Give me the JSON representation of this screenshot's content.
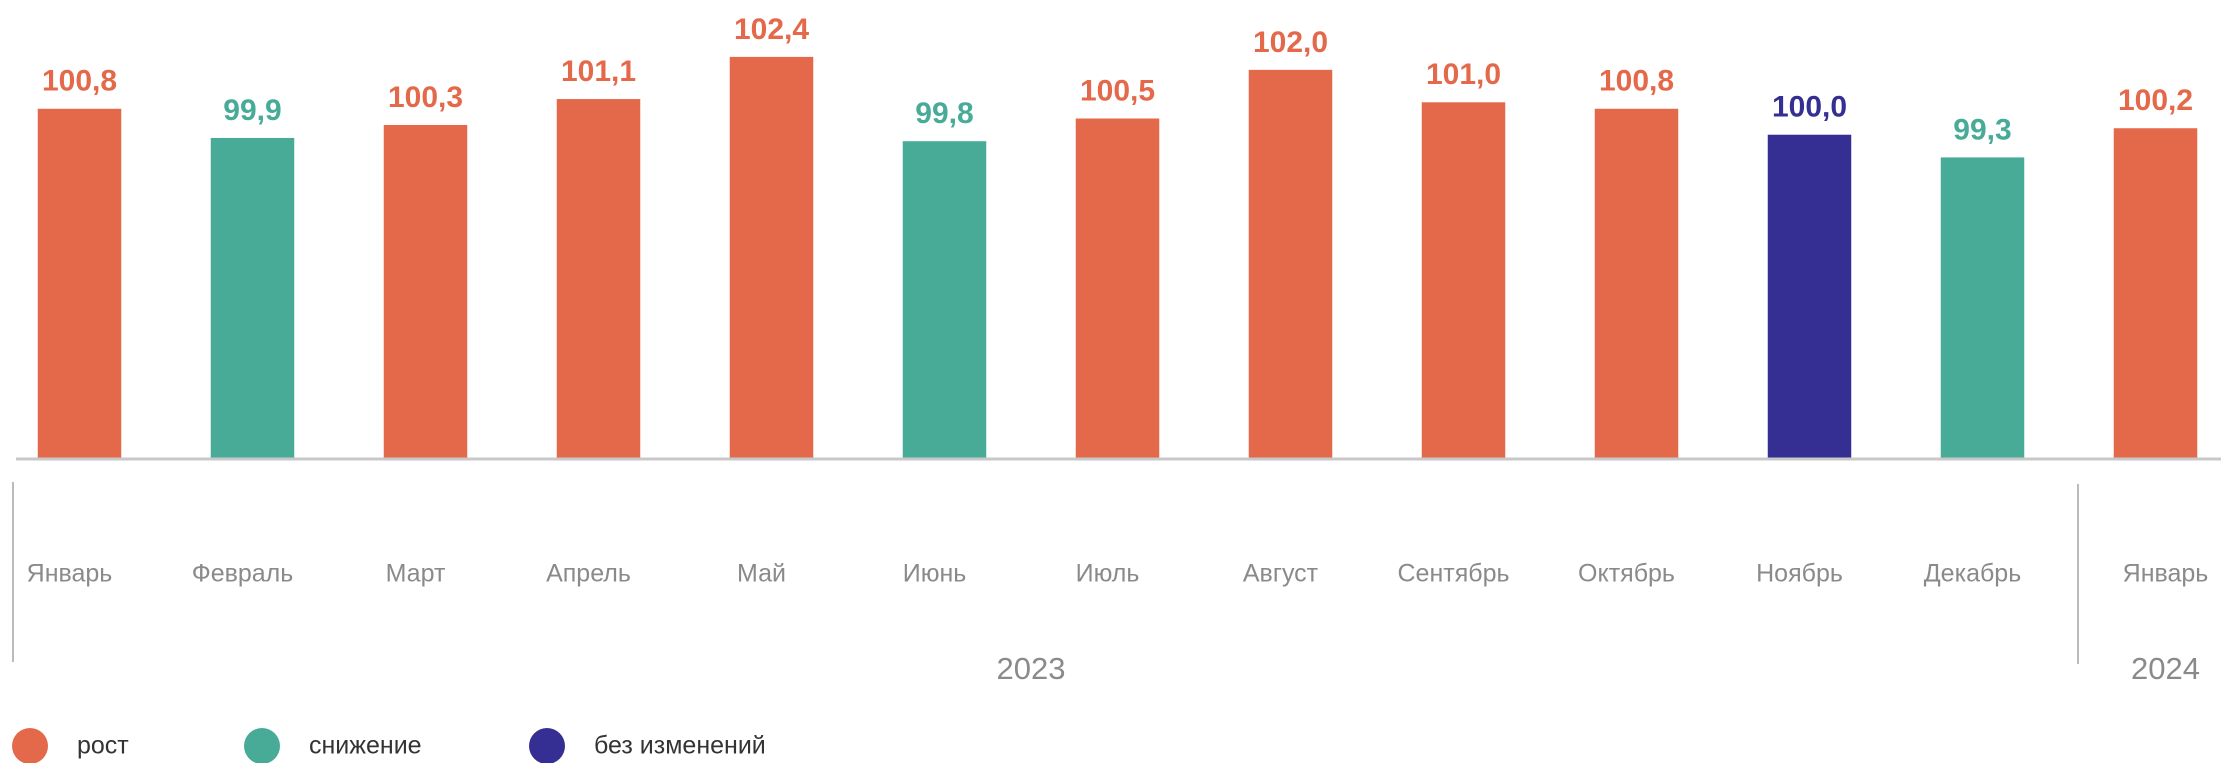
{
  "chart_data": {
    "type": "bar",
    "categories": [
      "Январь",
      "Февраль",
      "Март",
      "Апрель",
      "Май",
      "Июнь",
      "Июль",
      "Август",
      "Сентябрь",
      "Октябрь",
      "Ноябрь",
      "Декабрь",
      "Январь"
    ],
    "years": [
      "2023",
      "2023",
      "2023",
      "2023",
      "2023",
      "2023",
      "2023",
      "2023",
      "2023",
      "2023",
      "2023",
      "2023",
      "2024"
    ],
    "values": [
      100.8,
      99.9,
      100.3,
      101.1,
      102.4,
      99.8,
      100.5,
      102.0,
      101.0,
      100.8,
      100.0,
      99.3,
      100.2
    ],
    "value_labels": [
      "100,8",
      "99,9",
      "100,3",
      "101,1",
      "102,4",
      "99,8",
      "100,5",
      "102,0",
      "101,0",
      "100,8",
      "100,0",
      "99,3",
      "100,2"
    ],
    "colors": [
      "#e4694a",
      "#47ab98",
      "#e4694a",
      "#e4694a",
      "#e4694a",
      "#47ab98",
      "#e4694a",
      "#e4694a",
      "#e4694a",
      "#e4694a",
      "#352f93",
      "#47ab98",
      "#e4694a"
    ],
    "legend": [
      {
        "name": "рост",
        "color": "#e4694a"
      },
      {
        "name": "снижение",
        "color": "#47ab98"
      },
      {
        "name": "без изменений",
        "color": "#352f93"
      }
    ],
    "ylim": [
      90,
      104
    ]
  }
}
